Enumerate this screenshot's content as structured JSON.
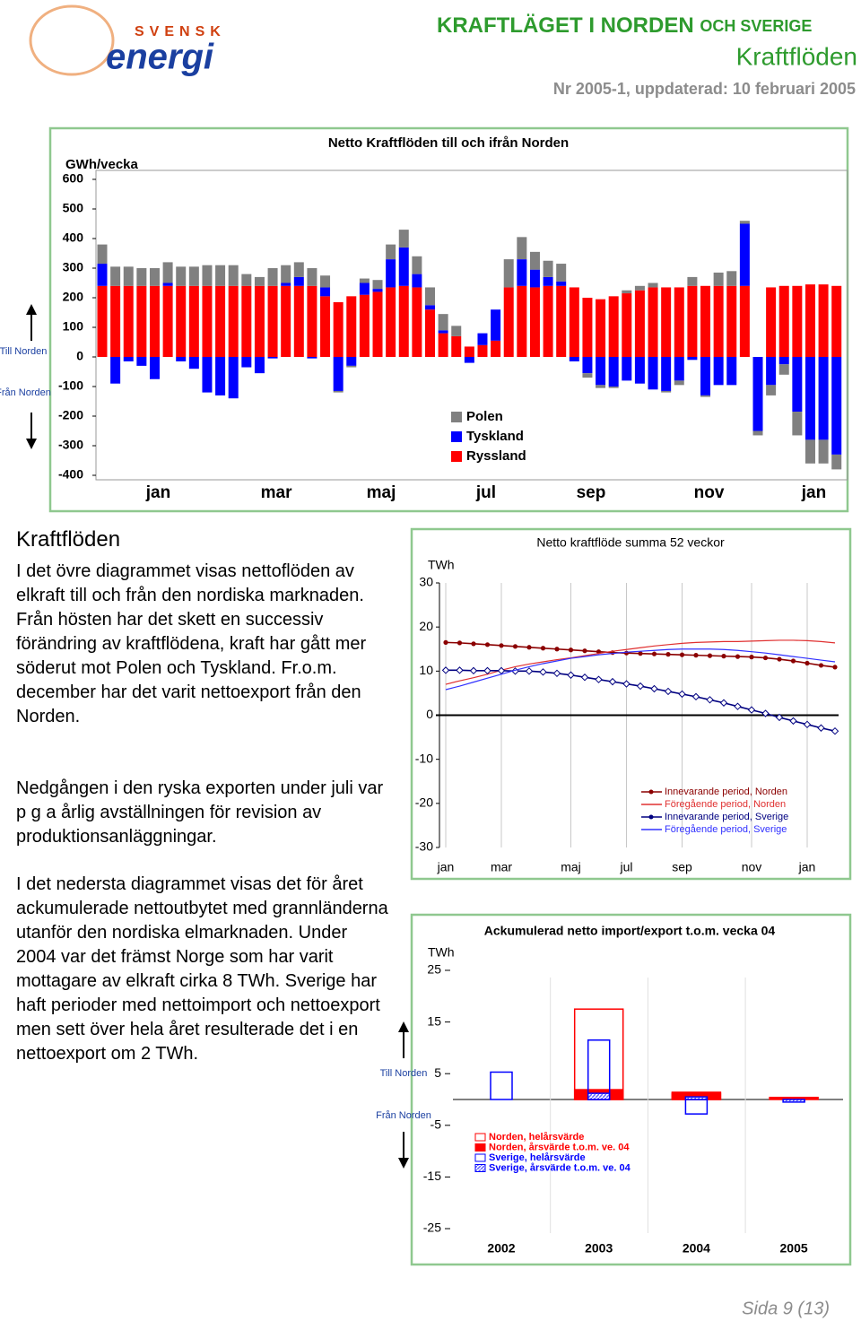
{
  "header": {
    "logo": {
      "brand_top": "SVENSK",
      "brand_main": "energi"
    },
    "title": "KRAFTLÄGET I NORDEN",
    "title_suffix": "OCH SVERIGE",
    "subtitle": "Kraftflöden",
    "issue": "Nr 2005-1, uppdaterad: 10 februari 2005"
  },
  "sidebar": {
    "heading": "Kraftflöden",
    "paragraphs": [
      "I det övre diagrammet visas nettoflöden av elkraft till och från den nordiska marknaden. Från hösten har det skett en successiv förändring av kraftflödena, kraft har gått mer söderut mot Polen och Tyskland. Fr.o.m. december har det varit nettoexport från den Norden.",
      "Nedgången i den ryska exporten under juli var p g a årlig avställningen för revision av produktionsanläggningar.",
      "I det nedersta diagrammet visas det för året ackumulerade nettoutbytet med grannländerna utanför den nordiska elmarknaden. Under 2004 var det främst Norge som har varit mottagare av elkraft cirka 8 TWh. Sverige har haft perioder med nettoimport och nettoexport men sett över hela året resulterade det i en nettoexport om 2 TWh."
    ]
  },
  "footer": "Sida 9 (13)",
  "chart_data": [
    {
      "type": "stacked_bar",
      "title": "Netto Kraftflöden till och ifrån Norden",
      "y_label": "GWh/vecka",
      "annotations": [
        "Till Norden",
        "Från Norden"
      ],
      "categories": [
        null,
        null,
        null,
        null,
        "jan",
        null,
        null,
        null,
        null,
        null,
        null,
        null,
        null,
        "mar",
        null,
        null,
        null,
        null,
        null,
        null,
        null,
        "maj",
        null,
        null,
        null,
        null,
        null,
        null,
        null,
        "jul",
        null,
        null,
        null,
        null,
        null,
        null,
        null,
        "sep",
        null,
        null,
        null,
        null,
        null,
        null,
        null,
        null,
        "nov",
        null,
        null,
        null,
        null,
        null,
        null,
        null,
        "jan",
        null,
        null
      ],
      "series": [
        {
          "name": "Polen",
          "color": "#808080",
          "values": [
            65,
            65,
            65,
            60,
            60,
            70,
            65,
            65,
            70,
            70,
            70,
            40,
            30,
            60,
            60,
            50,
            60,
            40,
            -5,
            -5,
            15,
            30,
            50,
            60,
            60,
            60,
            55,
            35,
            0,
            0,
            0,
            95,
            75,
            60,
            55,
            60,
            0,
            -15,
            -10,
            -5,
            10,
            15,
            15,
            -5,
            -15,
            30,
            -5,
            45,
            50,
            10,
            -15,
            -35,
            -35,
            -80,
            -80,
            -80,
            -50
          ]
        },
        {
          "name": "Tyskland",
          "color": "#0000ff",
          "values": [
            75,
            -90,
            -15,
            -30,
            -75,
            10,
            -15,
            -40,
            -120,
            -130,
            -140,
            -35,
            -55,
            -5,
            10,
            30,
            -5,
            30,
            -115,
            -30,
            40,
            10,
            95,
            130,
            45,
            15,
            10,
            0,
            -20,
            40,
            105,
            0,
            90,
            60,
            30,
            15,
            -15,
            -55,
            -95,
            -100,
            -80,
            -90,
            -110,
            -115,
            -80,
            -10,
            -130,
            -95,
            -95,
            210,
            -250,
            -95,
            -25,
            -185,
            -280,
            -280,
            -330
          ]
        },
        {
          "name": "Ryssland",
          "color": "#ff0000",
          "values": [
            240,
            240,
            240,
            240,
            240,
            240,
            240,
            240,
            240,
            240,
            240,
            240,
            240,
            240,
            240,
            240,
            240,
            205,
            185,
            205,
            210,
            220,
            235,
            240,
            235,
            160,
            80,
            70,
            35,
            40,
            55,
            235,
            240,
            235,
            240,
            240,
            235,
            200,
            195,
            205,
            215,
            225,
            235,
            235,
            235,
            240,
            240,
            240,
            240,
            240,
            0,
            235,
            240,
            240,
            245,
            245,
            240
          ]
        }
      ],
      "ylim": [
        -400,
        600
      ],
      "yticks": [
        -400,
        -300,
        -200,
        -100,
        0,
        100,
        200,
        300,
        400,
        500,
        600
      ],
      "grid": false,
      "legend": "bottom-center"
    },
    {
      "type": "line",
      "title": "Netto kraftflöde summa 52 veckor",
      "y_label": "TWh",
      "categories": [
        "jan",
        null,
        null,
        null,
        "mar",
        null,
        null,
        null,
        null,
        "maj",
        null,
        null,
        null,
        "jul",
        null,
        null,
        null,
        "sep",
        null,
        null,
        null,
        null,
        "nov",
        null,
        null,
        null,
        "jan",
        null,
        null
      ],
      "series": [
        {
          "name": "Innevarande period, Norden",
          "color": "#8b0000",
          "markers": true,
          "values": [
            16.5,
            16.4,
            16.2,
            16.0,
            15.8,
            15.6,
            15.4,
            15.2,
            15.0,
            14.8,
            14.6,
            14.4,
            14.2,
            14.1,
            14.0,
            13.9,
            13.8,
            13.7,
            13.6,
            13.5,
            13.4,
            13.3,
            13.2,
            13.0,
            12.7,
            12.3,
            11.8,
            11.3,
            10.9
          ]
        },
        {
          "name": "Föregående period, Norden",
          "color": "#e03030",
          "markers": false,
          "values": [
            7.0,
            7.8,
            8.5,
            9.3,
            10.2,
            11.0,
            11.6,
            12.1,
            12.6,
            13.0,
            13.5,
            14.0,
            14.5,
            14.9,
            15.3,
            15.7,
            16.0,
            16.3,
            16.5,
            16.6,
            16.7,
            16.7,
            16.8,
            16.9,
            17.0,
            17.0,
            16.9,
            16.7,
            16.4
          ]
        },
        {
          "name": "Innevarande period, Sverige",
          "color": "#000080",
          "markers": true,
          "values": [
            10.2,
            10.2,
            10.1,
            10.1,
            10.1,
            10.0,
            10.0,
            9.8,
            9.5,
            9.1,
            8.6,
            8.1,
            7.6,
            7.1,
            6.6,
            6.0,
            5.4,
            4.8,
            4.2,
            3.5,
            2.8,
            2.0,
            1.2,
            0.4,
            -0.5,
            -1.3,
            -2.1,
            -2.9,
            -3.6
          ]
        },
        {
          "name": "Föregående period, Sverige",
          "color": "#3030ff",
          "markers": false,
          "values": [
            5.8,
            6.6,
            7.5,
            8.4,
            9.3,
            10.2,
            11.0,
            11.7,
            12.3,
            12.9,
            13.3,
            13.7,
            14.0,
            14.3,
            14.5,
            14.7,
            14.9,
            15.0,
            15.0,
            15.0,
            14.9,
            14.7,
            14.4,
            14.1,
            13.7,
            13.3,
            12.9,
            12.5,
            12.1
          ]
        }
      ],
      "ylim": [
        -30,
        30
      ],
      "yticks": [
        -30,
        -20,
        -10,
        0,
        10,
        20,
        30
      ],
      "grid": true,
      "legend": "bottom-right"
    },
    {
      "type": "bar",
      "title": "Ackumulerad netto import/export t.o.m. vecka  04",
      "y_label": "TWh",
      "annotations": [
        "Till Norden",
        "Från Norden"
      ],
      "categories": [
        "2002",
        "2003",
        "2004",
        "2005"
      ],
      "series": [
        {
          "name": "Norden, helårsvärde",
          "color": "#ff0000",
          "fill_style": "outline",
          "values": [
            null,
            17.5,
            1.4,
            null
          ]
        },
        {
          "name": "Norden, årsvärde t.o.m. ve. 04",
          "color": "#ff0000",
          "fill_style": "solid",
          "values": [
            null,
            1.9,
            1.2,
            0.4
          ]
        },
        {
          "name": "Sverige, helårsvärde",
          "color": "#0000ff",
          "fill_style": "outline",
          "values": [
            5.3,
            11.5,
            -2.8,
            null
          ]
        },
        {
          "name": "Sverige, årsvärde t.o.m. ve. 04",
          "color": "#0000ff",
          "fill_style": "hatch",
          "values": [
            null,
            1.2,
            0.5,
            -0.5
          ]
        }
      ],
      "ylim": [
        -25,
        25
      ],
      "yticks": [
        -25,
        -15,
        -5,
        5,
        15,
        25
      ],
      "grid": true,
      "legend": "bottom-left"
    }
  ]
}
